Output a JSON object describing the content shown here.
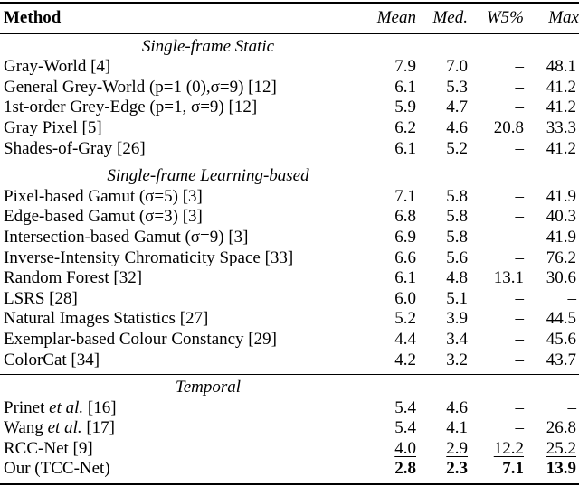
{
  "colors": {
    "text": "#000000",
    "background": "#ffffff",
    "rule": "#000000"
  },
  "table": {
    "columns": [
      "Method",
      "Mean",
      "Med.",
      "W5%",
      "Max"
    ],
    "sections": [
      {
        "heading": "Single-frame Static",
        "rows": [
          {
            "method": "Gray-World [4]",
            "mean": "7.9",
            "med": "7.0",
            "w5": "–",
            "max": "48.1"
          },
          {
            "method": "General Grey-World (p=1 (0),σ=9) [12]",
            "mean": "6.1",
            "med": "5.3",
            "w5": "–",
            "max": "41.2"
          },
          {
            "method": "1st-order Grey-Edge (p=1, σ=9) [12]",
            "mean": "5.9",
            "med": "4.7",
            "w5": "–",
            "max": "41.2"
          },
          {
            "method": "Gray Pixel [5]",
            "mean": "6.2",
            "med": "4.6",
            "w5": "20.8",
            "max": "33.3"
          },
          {
            "method": "Shades-of-Gray [26]",
            "mean": "6.1",
            "med": "5.2",
            "w5": "–",
            "max": "41.2"
          }
        ]
      },
      {
        "heading": "Single-frame Learning-based",
        "rows": [
          {
            "method": "Pixel-based Gamut (σ=5) [3]",
            "mean": "7.1",
            "med": "5.8",
            "w5": "–",
            "max": "41.9"
          },
          {
            "method": "Edge-based Gamut (σ=3) [3]",
            "mean": "6.8",
            "med": "5.8",
            "w5": "–",
            "max": "40.3"
          },
          {
            "method": "Intersection-based Gamut (σ=9) [3]",
            "mean": "6.9",
            "med": "5.8",
            "w5": "–",
            "max": "41.9"
          },
          {
            "method": "Inverse-Intensity Chromaticity Space [33]",
            "mean": "6.6",
            "med": "5.6",
            "w5": "–",
            "max": "76.2"
          },
          {
            "method": "Random Forest [32]",
            "mean": "6.1",
            "med": "4.8",
            "w5": "13.1",
            "max": "30.6"
          },
          {
            "method": "LSRS [28]",
            "mean": "6.0",
            "med": "5.1",
            "w5": "–",
            "max": "–"
          },
          {
            "method": "Natural Images Statistics [27]",
            "mean": "5.2",
            "med": "3.9",
            "w5": "–",
            "max": "44.5"
          },
          {
            "method": "Exemplar-based Colour Constancy [29]",
            "mean": "4.4",
            "med": "3.4",
            "w5": "–",
            "max": "45.6"
          },
          {
            "method": "ColorCat [34]",
            "mean": "4.2",
            "med": "3.2",
            "w5": "–",
            "max": "43.7"
          }
        ]
      },
      {
        "heading": "Temporal",
        "rows": [
          {
            "method": "Prinet et al. [16]",
            "method_parts": [
              {
                "text": "Prinet ",
                "italic": false
              },
              {
                "text": "et al.",
                "italic": true
              },
              {
                "text": " [16]",
                "italic": false
              }
            ],
            "mean": "5.4",
            "med": "4.6",
            "w5": "–",
            "max": "–"
          },
          {
            "method": "Wang et al. [17]",
            "method_parts": [
              {
                "text": "Wang ",
                "italic": false
              },
              {
                "text": "et al.",
                "italic": true
              },
              {
                "text": " [17]",
                "italic": false
              }
            ],
            "mean": "5.4",
            "med": "4.1",
            "w5": "–",
            "max": "26.8"
          },
          {
            "method": "RCC-Net [9]",
            "mean": "4.0",
            "med": "2.9",
            "w5": "12.2",
            "max": "25.2",
            "emphasis": "underline"
          },
          {
            "method": "Our (TCC-Net)",
            "mean": "2.8",
            "med": "2.3",
            "w5": "7.1",
            "max": "13.9",
            "emphasis": "bold"
          }
        ]
      }
    ]
  }
}
